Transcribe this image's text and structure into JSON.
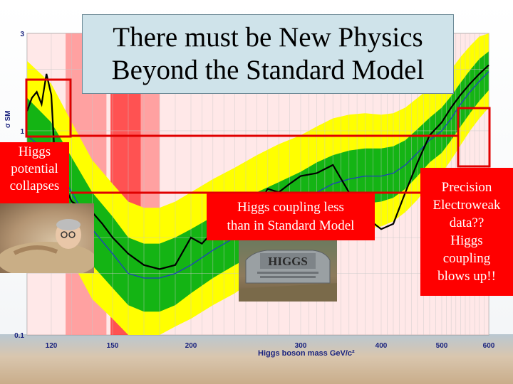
{
  "title": {
    "line1": "There must be New Physics",
    "line2": "Beyond the Standard Model"
  },
  "labels": {
    "higgs_collapse_lines": [
      "Higgs",
      "potential",
      "collapses"
    ],
    "coupling_less_lines": [
      "Higgs coupling less",
      "than in Standard Model"
    ],
    "precision_lines": [
      "Precision",
      "Electroweak",
      "data??",
      "Higgs",
      "coupling",
      "blows up!!"
    ]
  },
  "photos": {
    "sand": "person-in-sand-photo",
    "gravestone_text": "HIGGS"
  },
  "colors": {
    "yellow_band": "#ffff00",
    "green_band": "#14b414",
    "excluded_red": "#ff4444",
    "observed": "#000000",
    "expected": "#1f3fbf",
    "label_bg": "#ff0000"
  },
  "chart_data": {
    "type": "line",
    "xlabel": "Higgs boson mass GeV/c²",
    "ylabel": "σ SM",
    "x_ticks": [
      "120",
      "150",
      "200",
      "300",
      "400",
      "500",
      "600"
    ],
    "y_ticks": [
      "0.1",
      "1",
      "3"
    ],
    "xlim": [
      110,
      600
    ],
    "ylim": [
      0.1,
      3
    ],
    "y_scale": "log",
    "grid": true,
    "excluded_ranges": [
      [
        127,
        147
      ],
      [
        149,
        168
      ],
      [
        168,
        180
      ]
    ],
    "series": [
      {
        "x": [
          110,
          112,
          114,
          116,
          118,
          120,
          122,
          124,
          126,
          128,
          130,
          135,
          140,
          145,
          150,
          160,
          170,
          180,
          190,
          200,
          210,
          220,
          230,
          240,
          250,
          260,
          270,
          280,
          290,
          300,
          320,
          340,
          360,
          380,
          400,
          420,
          440,
          460,
          480,
          500,
          520,
          540,
          560,
          580,
          600
        ],
        "values": [
          1.25,
          1.45,
          1.55,
          1.35,
          1.9,
          1.5,
          0.65,
          0.45,
          0.62,
          0.5,
          0.45,
          0.42,
          0.4,
          0.35,
          0.3,
          0.25,
          0.22,
          0.21,
          0.22,
          0.3,
          0.28,
          0.32,
          0.36,
          0.45,
          0.4,
          0.42,
          0.52,
          0.5,
          0.55,
          0.6,
          0.62,
          0.68,
          0.5,
          0.38,
          0.33,
          0.35,
          0.5,
          0.7,
          0.95,
          1.1,
          1.3,
          1.5,
          1.7,
          1.9,
          2.1
        ]
      },
      {
        "x": [
          110,
          120,
          130,
          140,
          150,
          160,
          170,
          180,
          190,
          200,
          220,
          240,
          260,
          280,
          300,
          320,
          340,
          360,
          380,
          400,
          420,
          440,
          460,
          480,
          500,
          520,
          540,
          560,
          580,
          600
        ],
        "values": [
          0.95,
          0.75,
          0.5,
          0.33,
          0.25,
          0.2,
          0.19,
          0.19,
          0.2,
          0.22,
          0.26,
          0.3,
          0.35,
          0.4,
          0.45,
          0.5,
          0.55,
          0.58,
          0.6,
          0.6,
          0.62,
          0.68,
          0.78,
          0.9,
          1.0,
          1.15,
          1.35,
          1.55,
          1.75,
          1.95
        ]
      }
    ],
    "band_2sigma_low": [
      0.55,
      0.38,
      0.23,
      0.15,
      0.12,
      0.1,
      0.1,
      0.1,
      0.11,
      0.12,
      0.14,
      0.16,
      0.19,
      0.21,
      0.24,
      0.27,
      0.3,
      0.32,
      0.33,
      0.34,
      0.36,
      0.4,
      0.46,
      0.55,
      0.62,
      0.72,
      0.85,
      1.0,
      1.15,
      1.3
    ],
    "band_2sigma_high": [
      2.2,
      1.7,
      1.1,
      0.72,
      0.55,
      0.45,
      0.42,
      0.42,
      0.45,
      0.5,
      0.58,
      0.66,
      0.76,
      0.86,
      0.95,
      1.05,
      1.15,
      1.2,
      1.22,
      1.2,
      1.22,
      1.3,
      1.45,
      1.62,
      1.8,
      2.0,
      2.3,
      2.6,
      2.9,
      3.0
    ],
    "band_1sigma_low": [
      0.7,
      0.52,
      0.33,
      0.22,
      0.17,
      0.14,
      0.13,
      0.13,
      0.14,
      0.16,
      0.19,
      0.22,
      0.25,
      0.29,
      0.32,
      0.36,
      0.4,
      0.42,
      0.44,
      0.45,
      0.47,
      0.52,
      0.6,
      0.7,
      0.78,
      0.9,
      1.05,
      1.22,
      1.4,
      1.58
    ],
    "band_1sigma_high": [
      1.45,
      1.1,
      0.74,
      0.5,
      0.38,
      0.3,
      0.28,
      0.28,
      0.3,
      0.33,
      0.38,
      0.43,
      0.5,
      0.56,
      0.63,
      0.7,
      0.76,
      0.8,
      0.82,
      0.82,
      0.84,
      0.9,
      1.02,
      1.16,
      1.3,
      1.48,
      1.72,
      1.98,
      2.25,
      2.45
    ]
  }
}
